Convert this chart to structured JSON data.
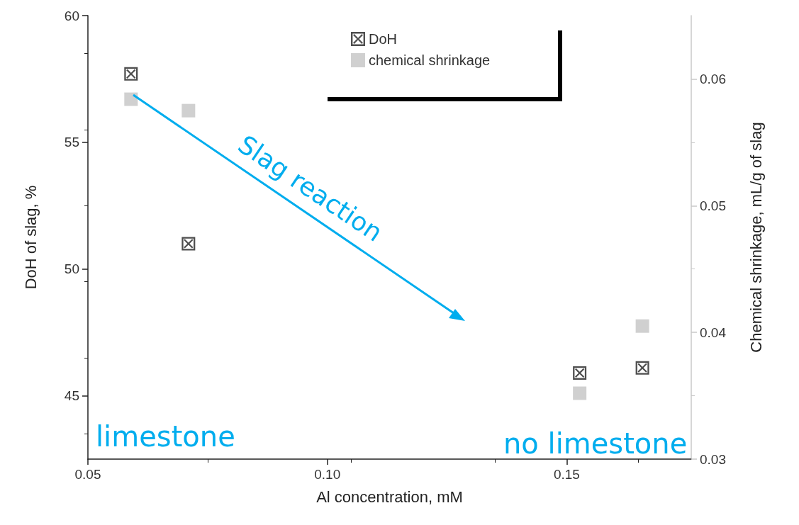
{
  "chart_data": {
    "type": "scatter",
    "xlabel": "Al concentration, mM",
    "ylabel": "DoH of slag, %",
    "y2label": "Chemical shrinkage, mL/g of slag",
    "xlim": [
      0.05,
      0.176
    ],
    "xticks": [
      {
        "value": 0.05,
        "label": "0.05"
      },
      {
        "value": 0.1,
        "label": "0.10"
      },
      {
        "value": 0.15,
        "label": "0.15"
      }
    ],
    "ylim": [
      42.5,
      60
    ],
    "yticks": [
      45,
      50,
      55,
      60
    ],
    "y2lim": [
      0.03,
      0.065
    ],
    "y2ticks": [
      0.03,
      0.04,
      0.05,
      0.06
    ],
    "x": [
      0.059,
      0.071,
      0.1527,
      0.1658
    ],
    "series": [
      {
        "name": "DoH",
        "color": "#222222",
        "marker": "cross",
        "values": [
          57.7,
          51.0,
          45.9,
          46.1
        ]
      },
      {
        "name": "chemical shrinkage",
        "color": "#c4c4c4",
        "marker": "square",
        "axis": "y2",
        "values": [
          0.0584,
          0.0575,
          0.0352,
          0.0405
        ]
      }
    ],
    "annotations": [
      "Slag reaction",
      "limestone",
      "no limestone"
    ],
    "legend": "top",
    "grid": false
  }
}
